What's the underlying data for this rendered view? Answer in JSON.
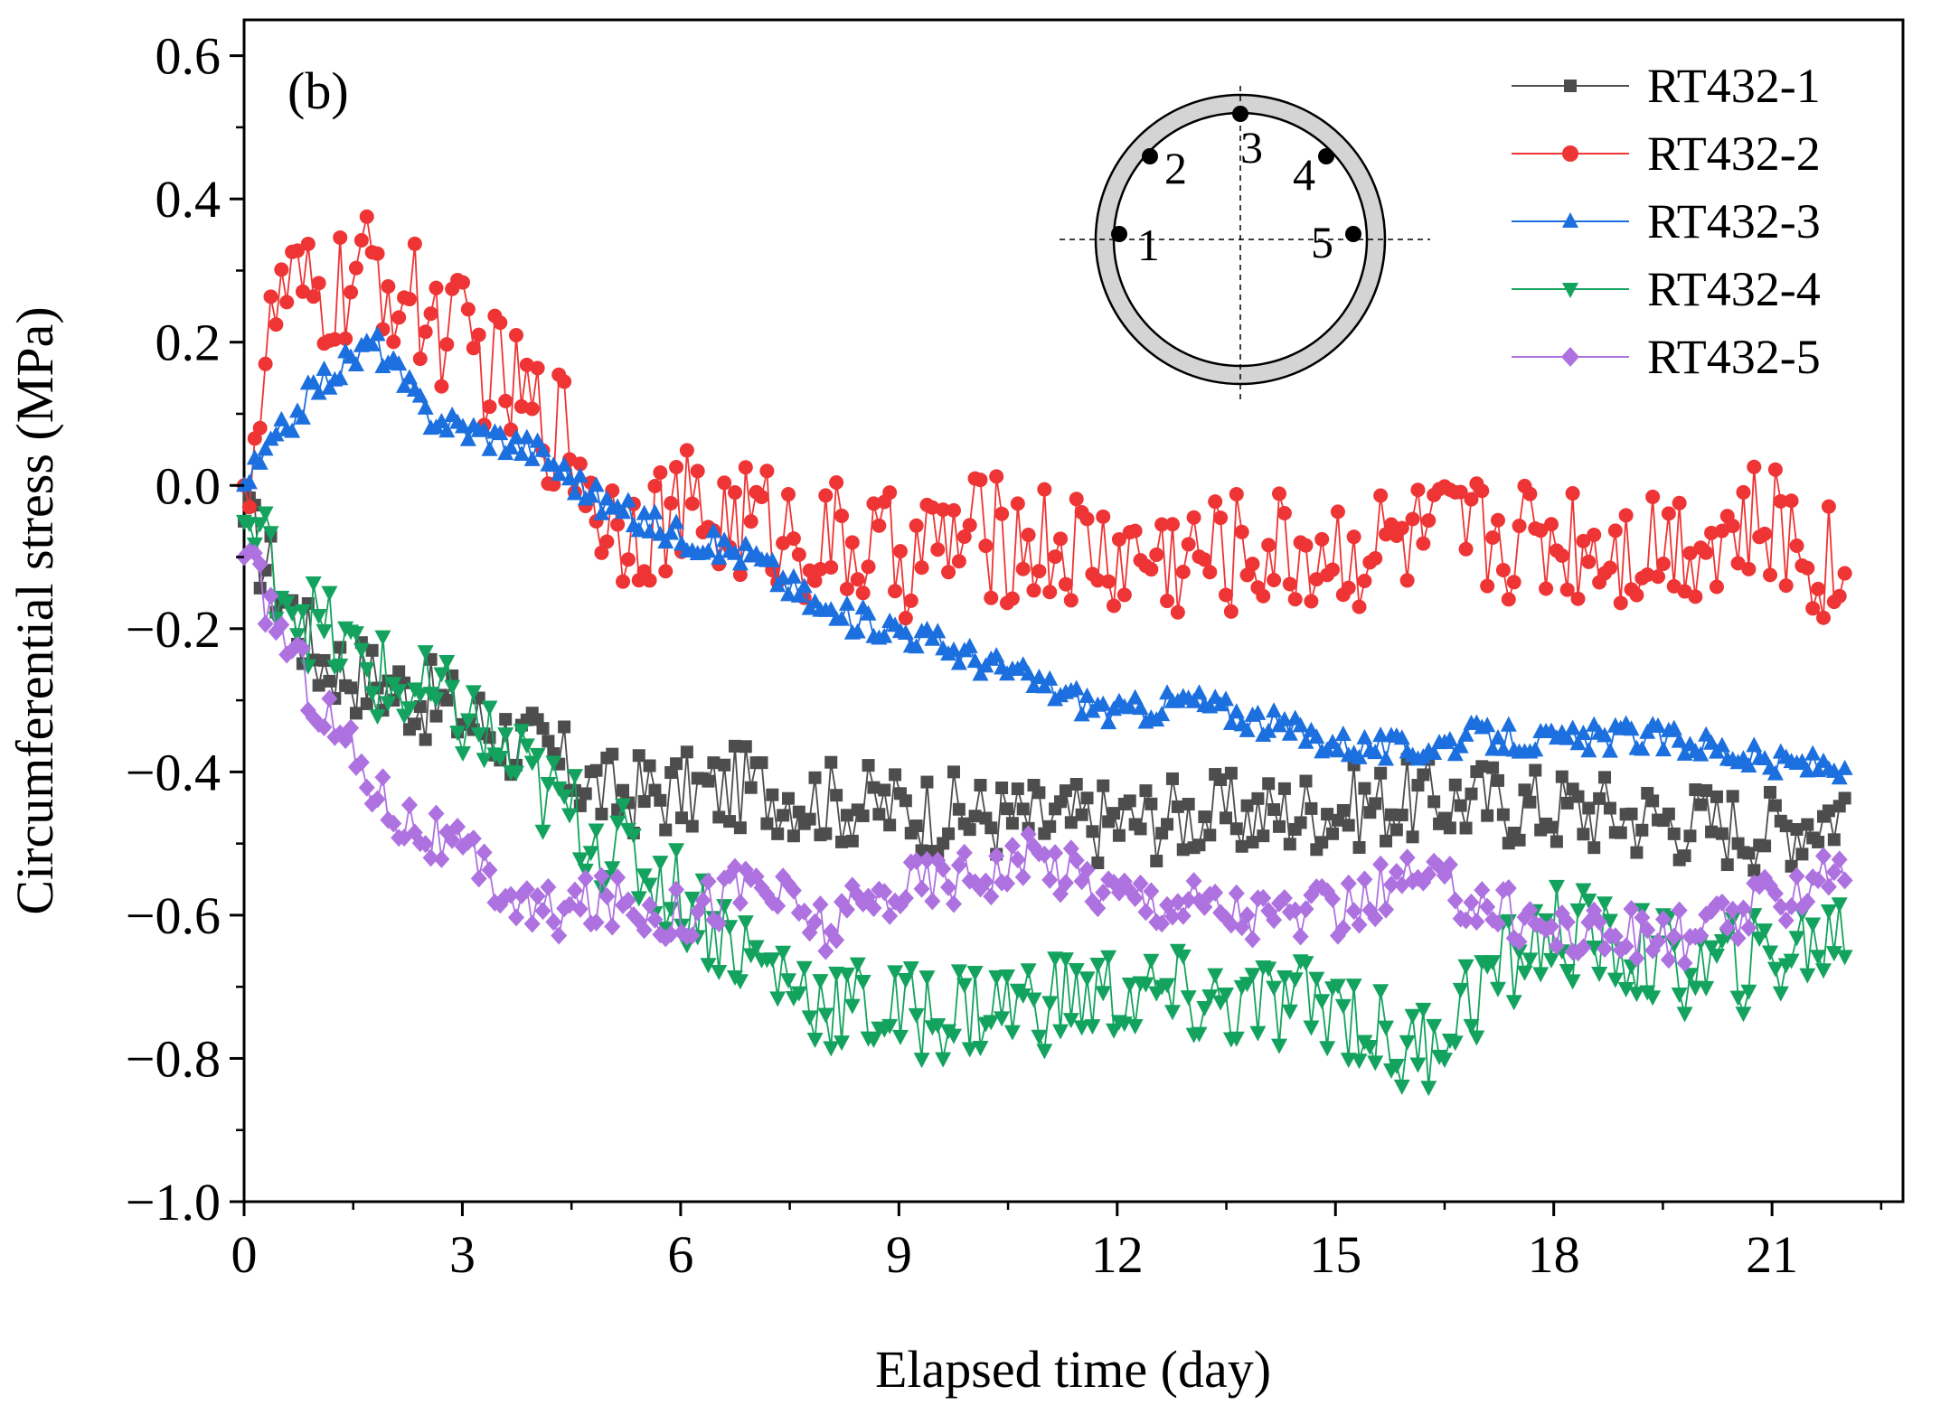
{
  "chart_data": {
    "type": "line",
    "panel_label": "(b)",
    "xlabel": "Elapsed time (day)",
    "ylabel": "Circumferential stress (MPa)",
    "xlim": [
      0,
      22.8
    ],
    "ylim": [
      -1.0,
      0.65
    ],
    "xticks": [
      0,
      3,
      6,
      9,
      12,
      15,
      18,
      21
    ],
    "xtick_labels": [
      "0",
      "3",
      "6",
      "9",
      "12",
      "15",
      "18",
      "21"
    ],
    "yticks": [
      -1.0,
      -0.8,
      -0.6,
      -0.4,
      -0.2,
      0.0,
      0.2,
      0.4,
      0.6
    ],
    "ytick_labels": [
      "−1.0",
      "−0.8",
      "−0.6",
      "−0.4",
      "−0.2",
      "0.0",
      "0.2",
      "0.4",
      "0.6"
    ],
    "legend_position": "top-right",
    "grid": false,
    "series": [
      {
        "name": "RT432-1",
        "color": "#4d4d4d",
        "marker": "square",
        "x": [
          0,
          1,
          2,
          3,
          4,
          5,
          6,
          7,
          8,
          9,
          10,
          11,
          12,
          13,
          14,
          15,
          16,
          17,
          18,
          19,
          20,
          21,
          22
        ],
        "values": [
          -0.05,
          -0.24,
          -0.28,
          -0.32,
          -0.37,
          -0.43,
          -0.43,
          -0.42,
          -0.44,
          -0.45,
          -0.46,
          -0.47,
          -0.47,
          -0.46,
          -0.46,
          -0.45,
          -0.44,
          -0.44,
          -0.45,
          -0.46,
          -0.47,
          -0.48,
          -0.45
        ],
        "noise": 0.06
      },
      {
        "name": "RT432-2",
        "color": "#ee3434",
        "marker": "circle",
        "x": [
          0,
          0.5,
          1,
          1.8,
          2,
          3,
          4,
          4.4,
          5,
          6,
          7,
          8,
          9,
          10,
          11,
          12,
          13,
          14,
          15,
          16,
          17,
          18,
          19,
          20,
          21,
          22
        ],
        "values": [
          0.0,
          0.27,
          0.25,
          0.3,
          0.28,
          0.2,
          0.1,
          0.08,
          -0.05,
          -0.04,
          -0.05,
          -0.08,
          -0.1,
          -0.07,
          -0.08,
          -0.1,
          -0.1,
          -0.09,
          -0.09,
          -0.08,
          -0.07,
          -0.07,
          -0.08,
          -0.07,
          -0.06,
          -0.12
        ],
        "noise": 0.09
      },
      {
        "name": "RT432-3",
        "color": "#1c6fde",
        "marker": "triangle-up",
        "x": [
          0,
          1,
          1.8,
          2.5,
          3,
          4,
          5,
          6,
          7,
          8,
          9,
          10,
          11,
          12,
          13,
          14,
          15,
          16,
          17,
          18,
          19,
          20,
          21,
          22
        ],
        "values": [
          0.0,
          0.14,
          0.2,
          0.1,
          0.08,
          0.05,
          -0.03,
          -0.07,
          -0.1,
          -0.18,
          -0.2,
          -0.24,
          -0.28,
          -0.32,
          -0.3,
          -0.33,
          -0.36,
          -0.37,
          -0.35,
          -0.36,
          -0.35,
          -0.36,
          -0.39,
          -0.39
        ],
        "noise": 0.02
      },
      {
        "name": "RT432-4",
        "color": "#13a35e",
        "marker": "triangle-down",
        "x": [
          0,
          1,
          2,
          3,
          4,
          5,
          6,
          7,
          8,
          9,
          10,
          11,
          12,
          13,
          14,
          15,
          16,
          17,
          18,
          19,
          20,
          21,
          22
        ],
        "values": [
          -0.05,
          -0.2,
          -0.28,
          -0.32,
          -0.42,
          -0.5,
          -0.57,
          -0.66,
          -0.72,
          -0.74,
          -0.73,
          -0.72,
          -0.71,
          -0.72,
          -0.73,
          -0.72,
          -0.8,
          -0.7,
          -0.62,
          -0.65,
          -0.68,
          -0.66,
          -0.62
        ],
        "noise": 0.07
      },
      {
        "name": "RT432-5",
        "color": "#ae72e0",
        "marker": "diamond",
        "x": [
          0,
          1,
          2,
          3,
          4,
          5,
          6,
          7,
          8,
          9,
          10,
          11,
          12,
          13,
          14,
          15,
          16,
          17,
          18,
          19,
          20,
          21,
          22
        ],
        "values": [
          -0.1,
          -0.3,
          -0.45,
          -0.52,
          -0.6,
          -0.58,
          -0.6,
          -0.55,
          -0.62,
          -0.56,
          -0.54,
          -0.52,
          -0.57,
          -0.58,
          -0.6,
          -0.6,
          -0.55,
          -0.58,
          -0.62,
          -0.63,
          -0.63,
          -0.58,
          -0.52
        ],
        "noise": 0.04
      }
    ],
    "inset": {
      "description": "pipe cross-section with gauge positions",
      "points": [
        {
          "label": "1"
        },
        {
          "label": "2"
        },
        {
          "label": "3"
        },
        {
          "label": "4"
        },
        {
          "label": "5"
        }
      ]
    }
  }
}
